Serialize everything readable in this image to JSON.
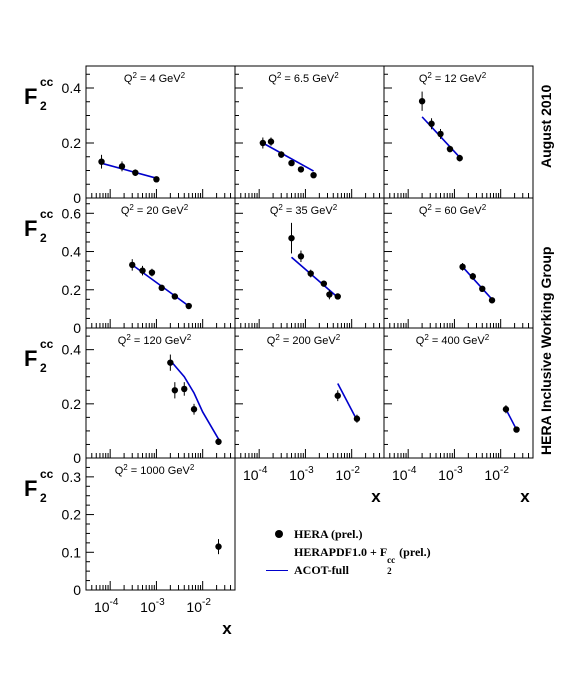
{
  "side_labels": {
    "top": "August 2010",
    "middle": "HERA Inclusive Working Group"
  },
  "legend": {
    "data_label": "HERA (prel.)",
    "pdf_label_main": "HERAPDF1.0 + F",
    "pdf_label_sup": "cc",
    "pdf_label_sub": "2",
    "pdf_label_tail": "(prel.)",
    "theory_label": "ACOT-full"
  },
  "ylabel": {
    "base": "F",
    "sup": "cc",
    "sub": "2"
  },
  "xlabel": "x",
  "colors": {
    "data": "#000000",
    "theory": "#0000cc",
    "frame": "#000000"
  },
  "chart_data": [
    {
      "type": "scatter",
      "q2_label": "Q",
      "q2_value": " =  4 GeV",
      "q2_unit_exp": "2",
      "yticks": [
        "0",
        "0.2",
        "0.4"
      ],
      "ylim": [
        0,
        0.48
      ],
      "xlim": [
        3e-05,
        0.05
      ],
      "points": [
        [
          6.5e-05,
          0.132,
          0.025
        ],
        [
          0.00018,
          0.115,
          0.018
        ],
        [
          0.00035,
          0.092,
          0.012
        ],
        [
          0.001,
          0.068,
          0.008
        ]
      ],
      "theory": [
        [
          6e-05,
          0.128
        ],
        [
          0.001,
          0.072
        ]
      ]
    },
    {
      "type": "scatter",
      "q2_label": "Q",
      "q2_value": " = 6.5 GeV",
      "q2_unit_exp": "2",
      "yticks": [],
      "ylim": [
        0,
        0.48
      ],
      "xlim": [
        3e-05,
        0.05
      ],
      "points": [
        [
          0.00012,
          0.2,
          0.02
        ],
        [
          0.00018,
          0.205,
          0.015
        ],
        [
          0.0003,
          0.158,
          0.012
        ],
        [
          0.0005,
          0.127,
          0.01
        ],
        [
          0.0008,
          0.104,
          0.008
        ],
        [
          0.0015,
          0.083,
          0.008
        ]
      ],
      "theory": [
        [
          0.00012,
          0.2
        ],
        [
          0.0015,
          0.098
        ]
      ]
    },
    {
      "type": "scatter",
      "q2_label": "Q",
      "q2_value": " = 12 GeV",
      "q2_unit_exp": "2",
      "yticks": [],
      "ylim": [
        0,
        0.48
      ],
      "xlim": [
        3e-05,
        0.05
      ],
      "points": [
        [
          0.0002,
          0.352,
          0.035
        ],
        [
          0.00032,
          0.27,
          0.02
        ],
        [
          0.0005,
          0.233,
          0.018
        ],
        [
          0.0008,
          0.178,
          0.012
        ],
        [
          0.0013,
          0.145,
          0.012
        ]
      ],
      "theory": [
        [
          0.0002,
          0.295
        ],
        [
          0.0013,
          0.148
        ]
      ]
    },
    {
      "type": "scatter",
      "q2_label": "Q",
      "q2_value": " = 20 GeV",
      "q2_unit_exp": "2",
      "yticks": [
        "0",
        "0.2",
        "0.4",
        "0.6"
      ],
      "ylim": [
        0,
        0.68
      ],
      "xlim": [
        3e-05,
        0.05
      ],
      "points": [
        [
          0.0003,
          0.33,
          0.03
        ],
        [
          0.0005,
          0.3,
          0.025
        ],
        [
          0.0008,
          0.29,
          0.02
        ],
        [
          0.0013,
          0.21,
          0.015
        ],
        [
          0.0025,
          0.165,
          0.012
        ],
        [
          0.005,
          0.115,
          0.01
        ]
      ],
      "theory": [
        [
          0.0003,
          0.33
        ],
        [
          0.005,
          0.115
        ]
      ]
    },
    {
      "type": "scatter",
      "q2_label": "Q",
      "q2_value": " = 35 GeV",
      "q2_unit_exp": "2",
      "yticks": [],
      "ylim": [
        0,
        0.68
      ],
      "xlim": [
        3e-05,
        0.05
      ],
      "points": [
        [
          0.0005,
          0.47,
          0.08
        ],
        [
          0.0008,
          0.375,
          0.03
        ],
        [
          0.0013,
          0.285,
          0.02
        ],
        [
          0.0025,
          0.232,
          0.015
        ],
        [
          0.0033,
          0.175,
          0.025
        ],
        [
          0.005,
          0.165,
          0.012
        ]
      ],
      "theory": [
        [
          0.0005,
          0.37
        ],
        [
          0.005,
          0.16
        ]
      ]
    },
    {
      "type": "scatter",
      "q2_label": "Q",
      "q2_value": " = 60 GeV",
      "q2_unit_exp": "2",
      "yticks": [],
      "ylim": [
        0,
        0.68
      ],
      "xlim": [
        3e-05,
        0.05
      ],
      "points": [
        [
          0.0015,
          0.32,
          0.02
        ],
        [
          0.0025,
          0.27,
          0.018
        ],
        [
          0.004,
          0.205,
          0.015
        ],
        [
          0.0065,
          0.145,
          0.012
        ]
      ],
      "theory": [
        [
          0.0015,
          0.32
        ],
        [
          0.0065,
          0.15
        ]
      ]
    },
    {
      "type": "scatter",
      "q2_label": "Q",
      "q2_value": " = 120 GeV",
      "q2_unit_exp": "2",
      "yticks": [
        "0",
        "0.2",
        "0.4"
      ],
      "ylim": [
        0,
        0.48
      ],
      "xlim": [
        3e-05,
        0.05
      ],
      "points": [
        [
          0.002,
          0.352,
          0.03
        ],
        [
          0.0025,
          0.25,
          0.03
        ],
        [
          0.004,
          0.255,
          0.025
        ],
        [
          0.0065,
          0.18,
          0.02
        ],
        [
          0.022,
          0.06,
          0.012
        ]
      ],
      "theory": [
        [
          0.002,
          0.36
        ],
        [
          0.004,
          0.3
        ],
        [
          0.0065,
          0.24
        ],
        [
          0.01,
          0.17
        ],
        [
          0.022,
          0.07
        ]
      ]
    },
    {
      "type": "scatter",
      "q2_label": "Q",
      "q2_value": " = 200 GeV",
      "q2_unit_exp": "2",
      "yticks": [],
      "ylim": [
        0,
        0.48
      ],
      "xlim": [
        3e-05,
        0.05
      ],
      "points": [
        [
          0.005,
          0.23,
          0.02
        ],
        [
          0.013,
          0.145,
          0.015
        ]
      ],
      "theory": [
        [
          0.005,
          0.275
        ],
        [
          0.013,
          0.14
        ]
      ]
    },
    {
      "type": "scatter",
      "q2_label": "Q",
      "q2_value": " = 400 GeV",
      "q2_unit_exp": "2",
      "yticks": [],
      "ylim": [
        0,
        0.48
      ],
      "xlim": [
        3e-05,
        0.05
      ],
      "points": [
        [
          0.013,
          0.18,
          0.015
        ],
        [
          0.022,
          0.105,
          0.01
        ]
      ],
      "theory": [
        [
          0.013,
          0.18
        ],
        [
          0.022,
          0.105
        ]
      ]
    },
    {
      "type": "scatter",
      "q2_label": "Q",
      "q2_value": " = 1000 GeV",
      "q2_unit_exp": "2",
      "yticks": [
        "0",
        "0.1",
        "0.2",
        "0.3"
      ],
      "ylim": [
        0,
        0.35
      ],
      "xlim": [
        3e-05,
        0.05
      ],
      "points": [
        [
          0.022,
          0.115,
          0.02
        ]
      ],
      "theory": [
        [
          0.021,
          0.12
        ],
        [
          0.023,
          0.11
        ]
      ]
    }
  ],
  "xticks": [
    {
      "base": "10",
      "exp": "-4",
      "value": 0.0001
    },
    {
      "base": "10",
      "exp": "-3",
      "value": 0.001
    },
    {
      "base": "10",
      "exp": "-2",
      "value": 0.01
    }
  ]
}
